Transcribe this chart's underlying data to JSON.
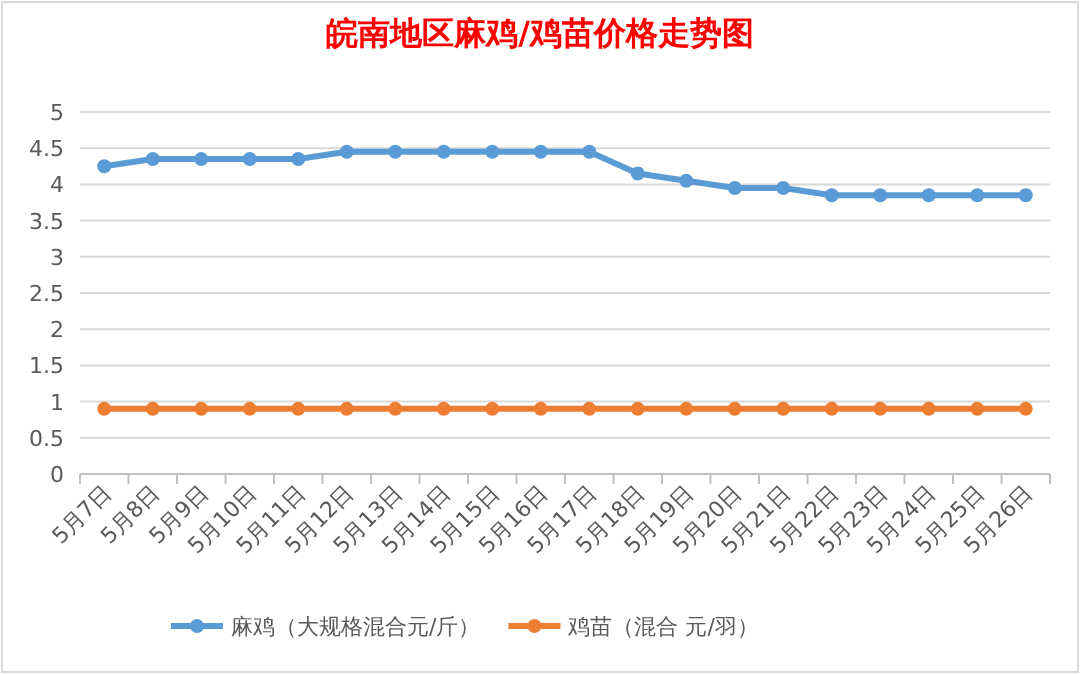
{
  "chart_data": {
    "type": "line",
    "title": "皖南地区麻鸡/鸡苗价格走势图",
    "categories": [
      "5月7日",
      "5月8日",
      "5月9日",
      "5月10日",
      "5月11日",
      "5月12日",
      "5月13日",
      "5月14日",
      "5月15日",
      "5月16日",
      "5月17日",
      "5月18日",
      "5月19日",
      "5月20日",
      "5月21日",
      "5月22日",
      "5月23日",
      "5月24日",
      "5月25日",
      "5月26日"
    ],
    "series": [
      {
        "name": "麻鸡（大规格混合元/斤）",
        "color": "#5b9bd5",
        "values": [
          4.25,
          4.35,
          4.35,
          4.35,
          4.35,
          4.45,
          4.45,
          4.45,
          4.45,
          4.45,
          4.45,
          4.15,
          4.05,
          3.95,
          3.95,
          3.85,
          3.85,
          3.85,
          3.85,
          3.85
        ]
      },
      {
        "name": "鸡苗（混合 元/羽）",
        "color": "#ed7d31",
        "values": [
          0.9,
          0.9,
          0.9,
          0.9,
          0.9,
          0.9,
          0.9,
          0.9,
          0.9,
          0.9,
          0.9,
          0.9,
          0.9,
          0.9,
          0.9,
          0.9,
          0.9,
          0.9,
          0.9,
          0.9
        ]
      }
    ],
    "ylim": [
      0,
      5
    ],
    "yticks": [
      0,
      0.5,
      1,
      1.5,
      2,
      2.5,
      3,
      3.5,
      4,
      4.5,
      5
    ],
    "grid": "y",
    "legend": "bottom",
    "marker": "circle",
    "line_style": "solid"
  }
}
